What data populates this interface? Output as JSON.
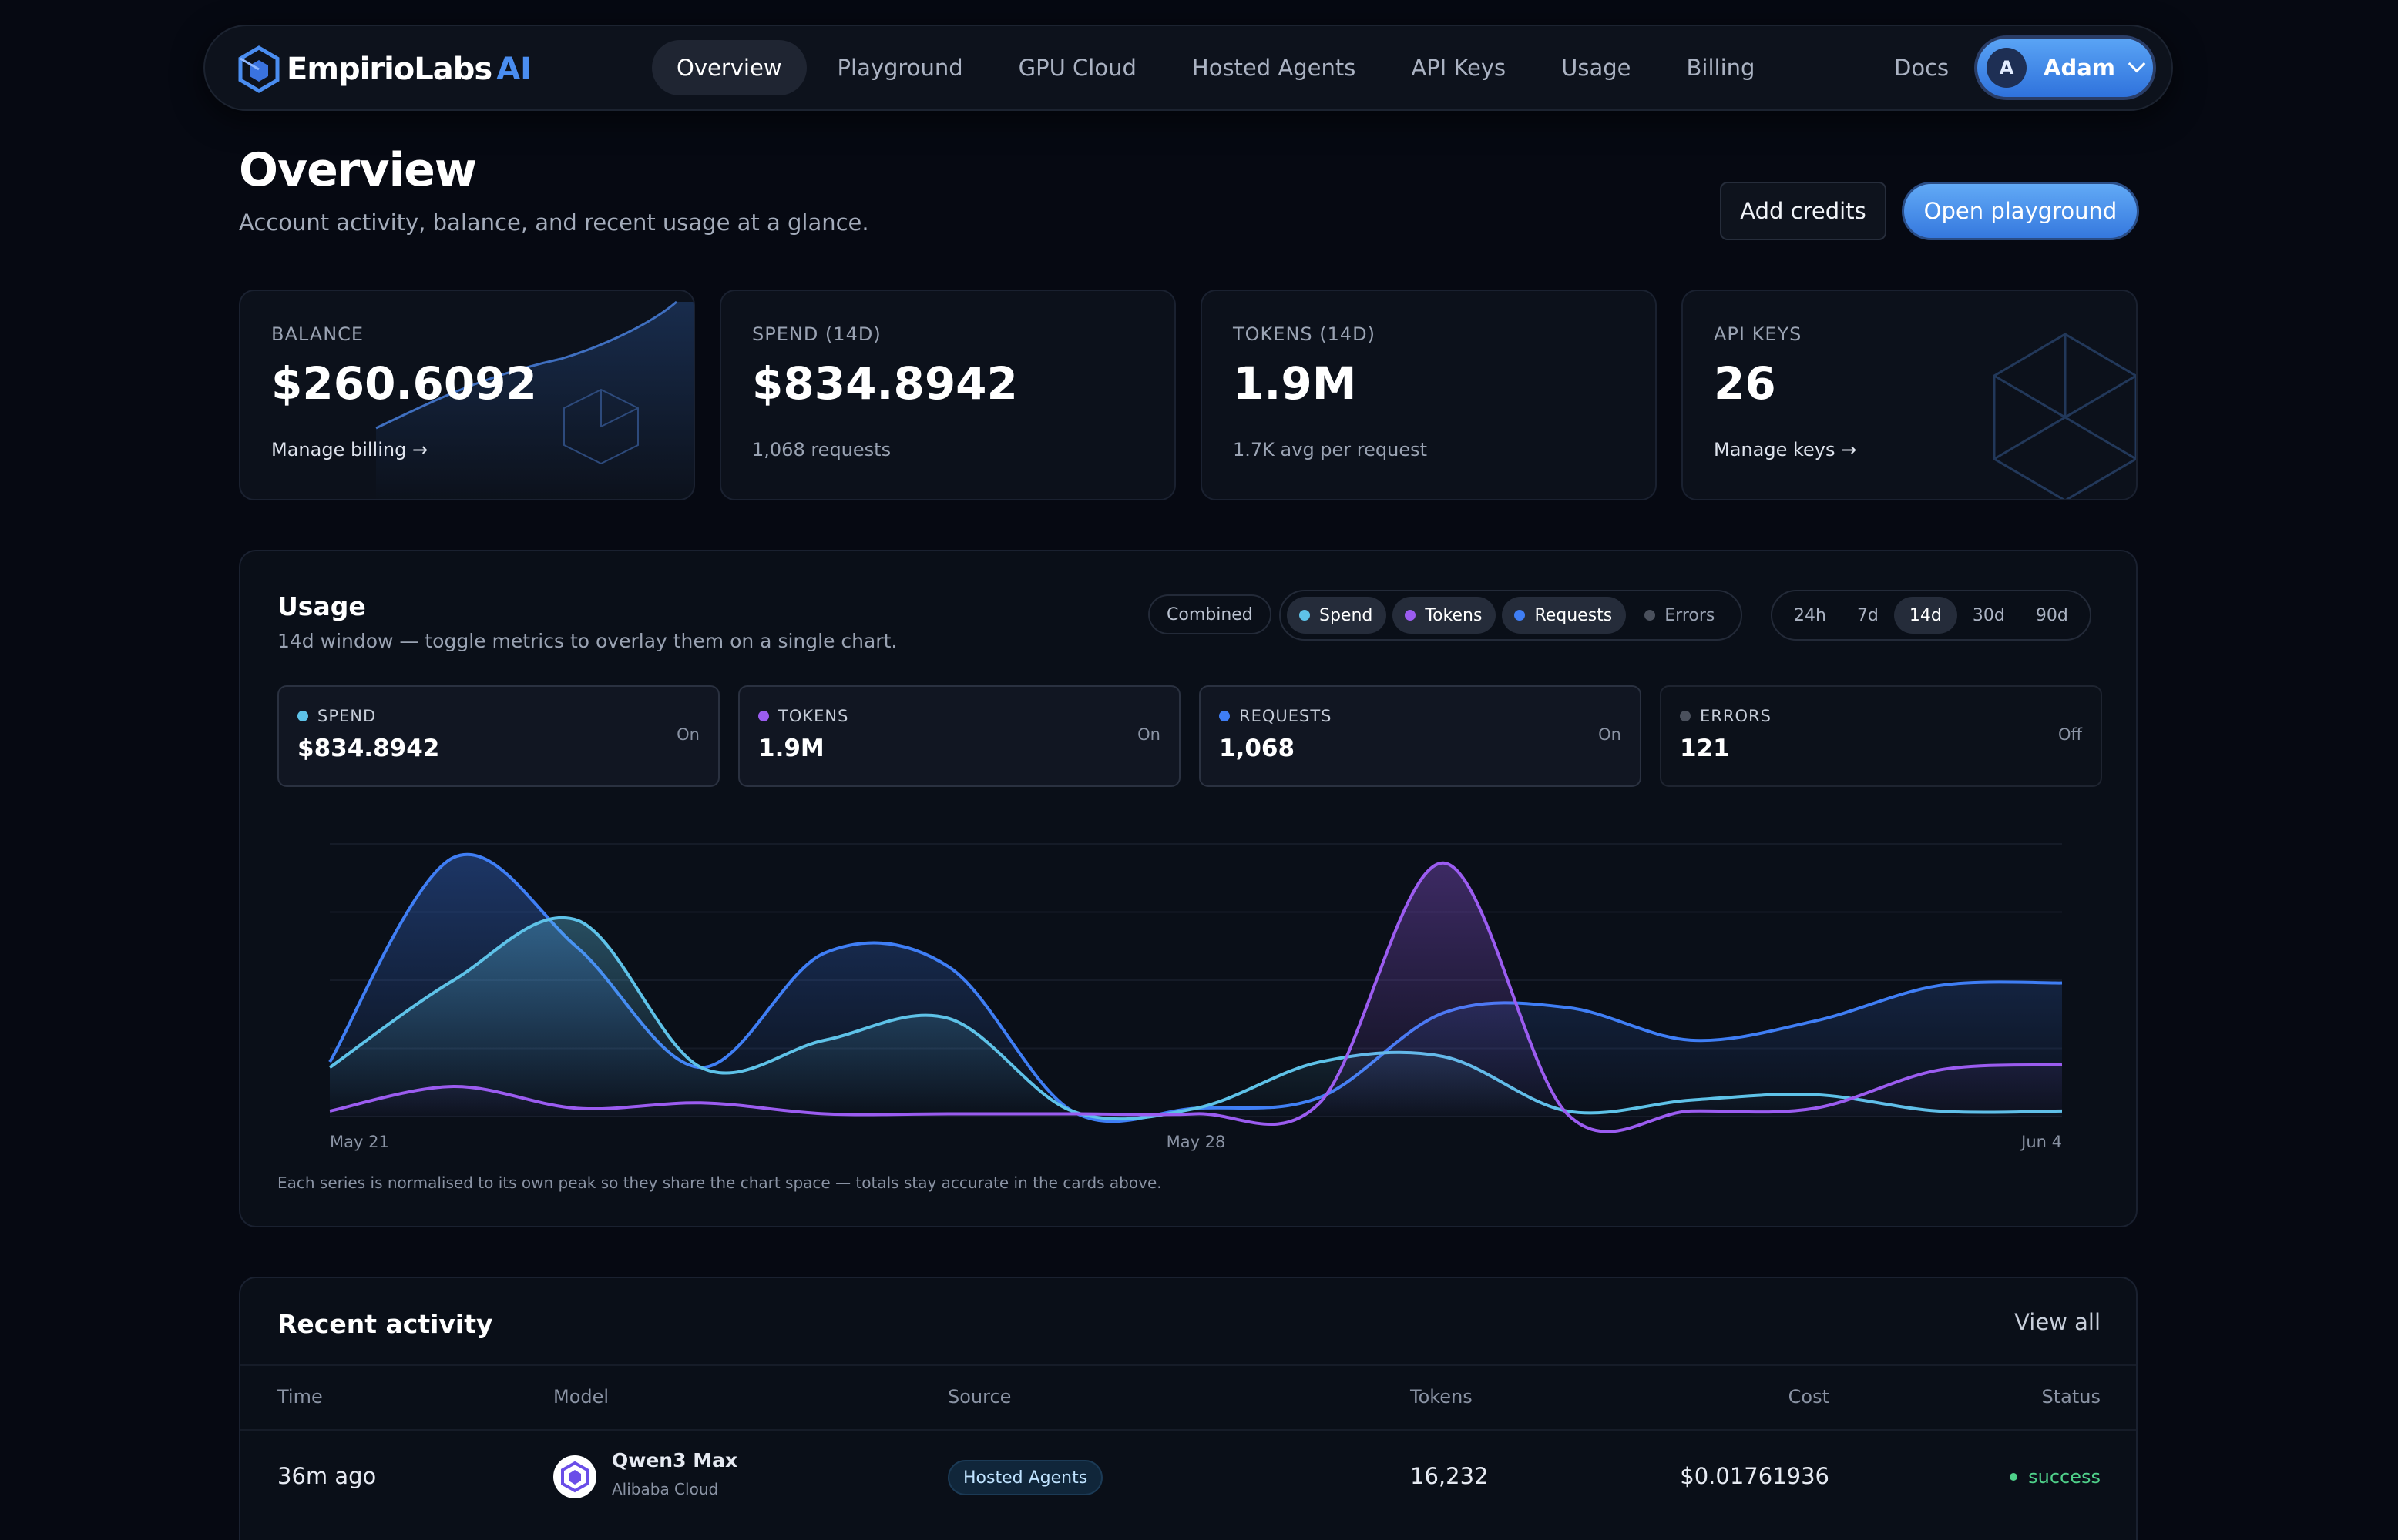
{
  "nav": {
    "brand": "EmpirioLabs",
    "brand_suffix": "AI",
    "items": [
      {
        "label": "Overview",
        "active": true
      },
      {
        "label": "Playground"
      },
      {
        "label": "GPU Cloud"
      },
      {
        "label": "Hosted Agents"
      },
      {
        "label": "API Keys"
      },
      {
        "label": "Usage"
      },
      {
        "label": "Billing"
      }
    ],
    "docs": "Docs",
    "user": {
      "initial": "A",
      "name": "Adam"
    }
  },
  "header": {
    "title": "Overview",
    "subtitle": "Account activity, balance, and recent usage at a glance.",
    "add_credits": "Add credits",
    "open_playground": "Open playground"
  },
  "stats": [
    {
      "label": "BALANCE",
      "value": "$260.6092",
      "sub": "Manage billing →"
    },
    {
      "label": "SPEND (14D)",
      "value": "$834.8942",
      "sub": "1,068 requests"
    },
    {
      "label": "TOKENS (14D)",
      "value": "1.9M",
      "sub": "1.7K avg per request"
    },
    {
      "label": "API KEYS",
      "value": "26",
      "sub": "Manage keys →"
    }
  ],
  "usage": {
    "title": "Usage",
    "subtitle": "14d window — toggle metrics to overlay them on a single chart.",
    "combined": "Combined",
    "toggles": [
      {
        "label": "Spend",
        "color": "#5ec2e8",
        "on": true
      },
      {
        "label": "Tokens",
        "color": "#9b5cf0",
        "on": true
      },
      {
        "label": "Requests",
        "color": "#3f7ef5",
        "on": true
      },
      {
        "label": "Errors",
        "color": "#4a505c",
        "on": false
      }
    ],
    "ranges": [
      "24h",
      "7d",
      "14d",
      "30d",
      "90d"
    ],
    "active_range": "14d",
    "metrics": [
      {
        "label": "SPEND",
        "value": "$834.8942",
        "state": "On",
        "color": "#5ec2e8"
      },
      {
        "label": "TOKENS",
        "value": "1.9M",
        "state": "On",
        "color": "#9b5cf0"
      },
      {
        "label": "REQUESTS",
        "value": "1,068",
        "state": "On",
        "color": "#3f7ef5"
      },
      {
        "label": "ERRORS",
        "value": "121",
        "state": "Off",
        "color": "#4a505c"
      }
    ],
    "x_labels": [
      "May 21",
      "May 28",
      "Jun 4"
    ],
    "note": "Each series is normalised to its own peak so they share the chart space — totals stay accurate in the cards above."
  },
  "chart_data": {
    "type": "area",
    "x": [
      "May 21",
      "May 22",
      "May 23",
      "May 24",
      "May 25",
      "May 26",
      "May 27",
      "May 28",
      "May 29",
      "May 30",
      "May 31",
      "Jun 1",
      "Jun 2",
      "Jun 3",
      "Jun 4"
    ],
    "series": [
      {
        "name": "Requests",
        "color": "#3f7ef5",
        "values": [
          0.2,
          0.95,
          0.62,
          0.18,
          0.6,
          0.55,
          0.02,
          0.03,
          0.07,
          0.38,
          0.4,
          0.28,
          0.35,
          0.48,
          0.49
        ]
      },
      {
        "name": "Spend",
        "color": "#5ec2e8",
        "values": [
          0.18,
          0.5,
          0.72,
          0.18,
          0.28,
          0.36,
          0.02,
          0.03,
          0.2,
          0.22,
          0.02,
          0.06,
          0.08,
          0.02,
          0.02
        ]
      },
      {
        "name": "Tokens",
        "color": "#9b5cf0",
        "values": [
          0.02,
          0.11,
          0.03,
          0.05,
          0.01,
          0.01,
          0.01,
          0.01,
          0.05,
          0.93,
          0.01,
          0.02,
          0.03,
          0.17,
          0.19
        ]
      }
    ],
    "ylim": [
      0,
      1
    ],
    "grid": true
  },
  "activity": {
    "title": "Recent activity",
    "view_all": "View all",
    "columns": [
      "Time",
      "Model",
      "Source",
      "Tokens",
      "Cost",
      "Status"
    ],
    "rows": [
      {
        "time": "36m ago",
        "model": "Qwen3 Max",
        "provider": "Alibaba Cloud",
        "source": "Hosted Agents",
        "tokens": "16,232",
        "cost": "$0.01761936",
        "status": "success"
      }
    ]
  }
}
